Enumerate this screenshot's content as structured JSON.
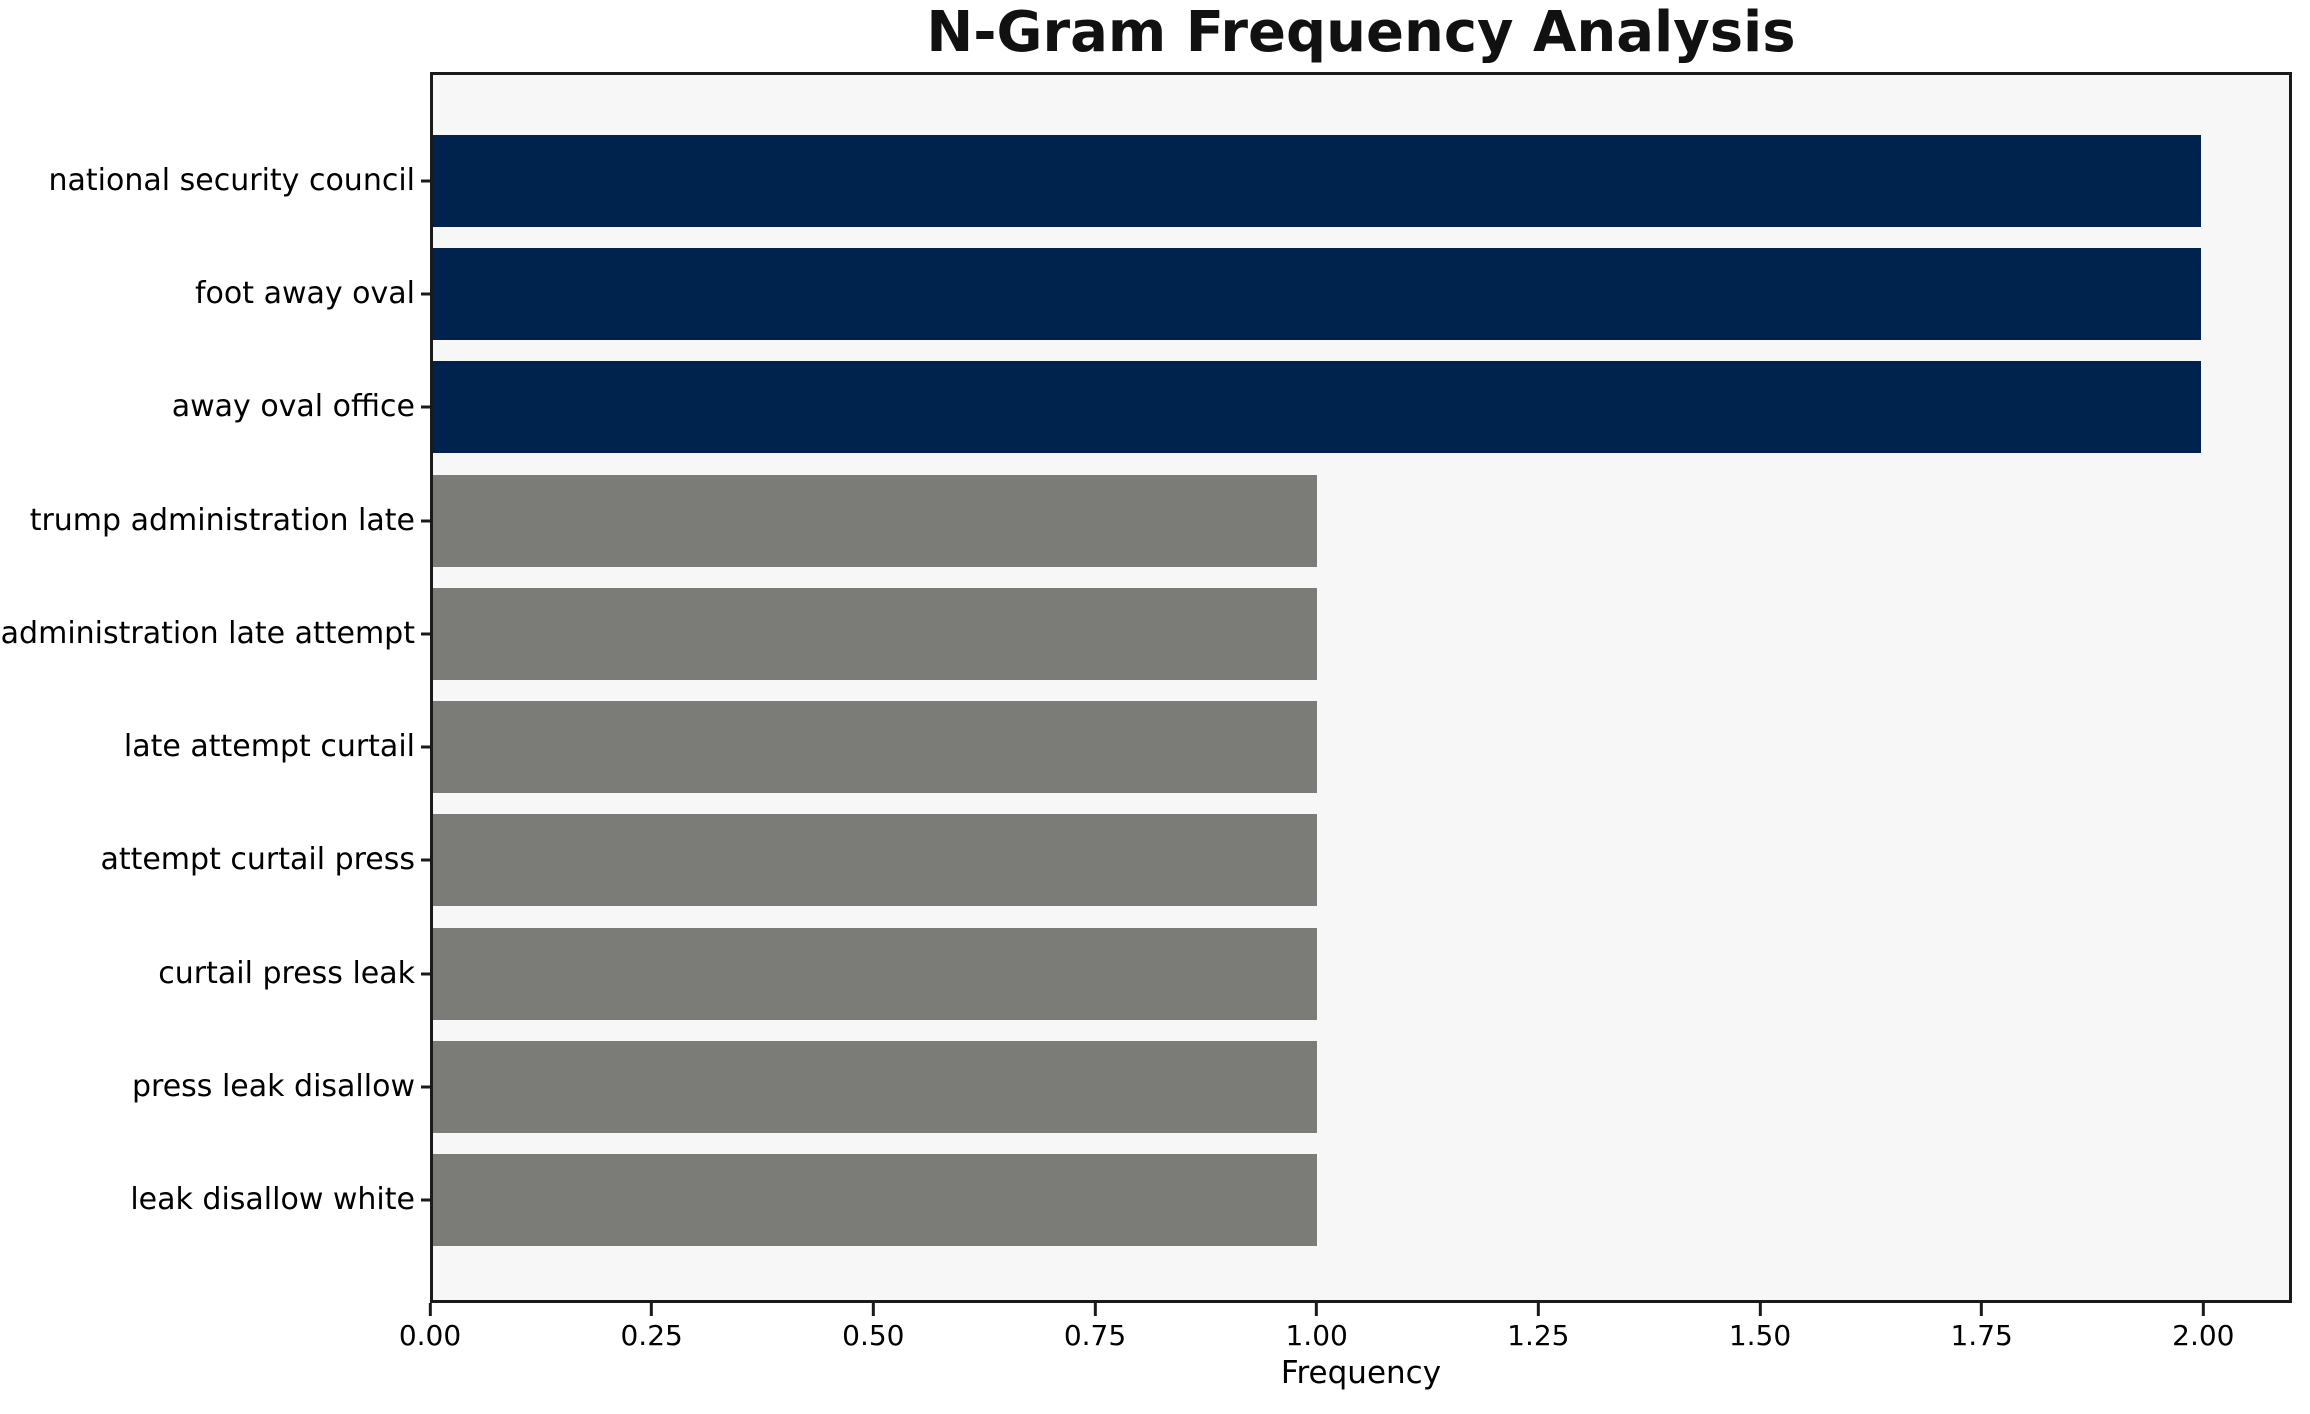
{
  "chart_data": {
    "type": "bar",
    "orientation": "horizontal",
    "title": "N-Gram Frequency Analysis",
    "xlabel": "Frequency",
    "ylabel": "",
    "categories": [
      "national security council",
      "foot away oval",
      "away oval office",
      "trump administration late",
      "administration late attempt",
      "late attempt curtail",
      "attempt curtail press",
      "curtail press leak",
      "press leak disallow",
      "leak disallow white"
    ],
    "values": [
      2,
      2,
      2,
      1,
      1,
      1,
      1,
      1,
      1,
      1
    ],
    "bar_colors": [
      "#00234d",
      "#00234d",
      "#00234d",
      "#7b7b78",
      "#7b7b78",
      "#7b7b78",
      "#7b7b78",
      "#7b7b78",
      "#7b7b78",
      "#7b7b78"
    ],
    "xlim": [
      0,
      2.1
    ],
    "xticks": {
      "values": [
        0,
        0.25,
        0.5,
        0.75,
        1.0,
        1.25,
        1.5,
        1.75,
        2.0
      ],
      "labels": [
        "0.00",
        "0.25",
        "0.50",
        "0.75",
        "1.00",
        "1.25",
        "1.50",
        "1.75",
        "2.00"
      ]
    },
    "grid": false,
    "legend": null,
    "styles": {
      "highlight_color": "#00234d",
      "base_color": "#7b7b78",
      "plot_background": "#f7f7f7",
      "figure_background": "#ffffff",
      "spine_color": "#1a1a1a",
      "text_color": "#000000"
    }
  }
}
